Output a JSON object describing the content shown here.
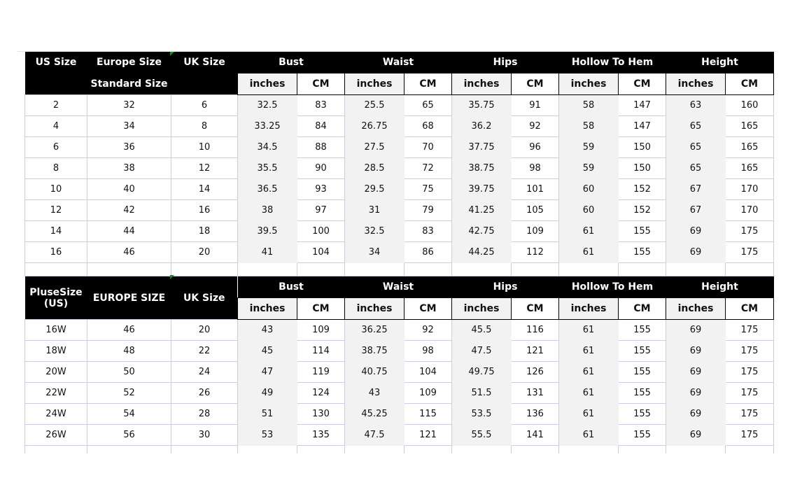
{
  "measure_groups": [
    "Bust",
    "Waist",
    "Hips",
    "Hollow To Hem",
    "Height"
  ],
  "units": [
    "inches",
    "CM"
  ],
  "table1": {
    "headers": {
      "us": "US Size",
      "eu": "Europe Size",
      "eu2": "Standard Size",
      "uk": "UK Size"
    },
    "rows": [
      [
        "2",
        "32",
        "6",
        "32.5",
        "83",
        "25.5",
        "65",
        "35.75",
        "91",
        "58",
        "147",
        "63",
        "160"
      ],
      [
        "4",
        "34",
        "8",
        "33.25",
        "84",
        "26.75",
        "68",
        "36.2",
        "92",
        "58",
        "147",
        "65",
        "165"
      ],
      [
        "6",
        "36",
        "10",
        "34.5",
        "88",
        "27.5",
        "70",
        "37.75",
        "96",
        "59",
        "150",
        "65",
        "165"
      ],
      [
        "8",
        "38",
        "12",
        "35.5",
        "90",
        "28.5",
        "72",
        "38.75",
        "98",
        "59",
        "150",
        "65",
        "165"
      ],
      [
        "10",
        "40",
        "14",
        "36.5",
        "93",
        "29.5",
        "75",
        "39.75",
        "101",
        "60",
        "152",
        "67",
        "170"
      ],
      [
        "12",
        "42",
        "16",
        "38",
        "97",
        "31",
        "79",
        "41.25",
        "105",
        "60",
        "152",
        "67",
        "170"
      ],
      [
        "14",
        "44",
        "18",
        "39.5",
        "100",
        "32.5",
        "83",
        "42.75",
        "109",
        "61",
        "155",
        "69",
        "175"
      ],
      [
        "16",
        "46",
        "20",
        "41",
        "104",
        "34",
        "86",
        "44.25",
        "112",
        "61",
        "155",
        "69",
        "175"
      ]
    ]
  },
  "table2": {
    "headers": {
      "us": "PluseSize",
      "us2": "(US)",
      "eu": "EUROPE SIZE",
      "uk": "UK Size"
    },
    "rows": [
      [
        "16W",
        "46",
        "20",
        "43",
        "109",
        "36.25",
        "92",
        "45.5",
        "116",
        "61",
        "155",
        "69",
        "175"
      ],
      [
        "18W",
        "48",
        "22",
        "45",
        "114",
        "38.75",
        "98",
        "47.5",
        "121",
        "61",
        "155",
        "69",
        "175"
      ],
      [
        "20W",
        "50",
        "24",
        "47",
        "119",
        "40.75",
        "104",
        "49.75",
        "126",
        "61",
        "155",
        "69",
        "175"
      ],
      [
        "22W",
        "52",
        "26",
        "49",
        "124",
        "43",
        "109",
        "51.5",
        "131",
        "61",
        "155",
        "69",
        "175"
      ],
      [
        "24W",
        "54",
        "28",
        "51",
        "130",
        "45.25",
        "115",
        "53.5",
        "136",
        "61",
        "155",
        "69",
        "175"
      ],
      [
        "26W",
        "56",
        "30",
        "53",
        "135",
        "47.5",
        "121",
        "55.5",
        "141",
        "61",
        "155",
        "69",
        "175"
      ]
    ]
  }
}
